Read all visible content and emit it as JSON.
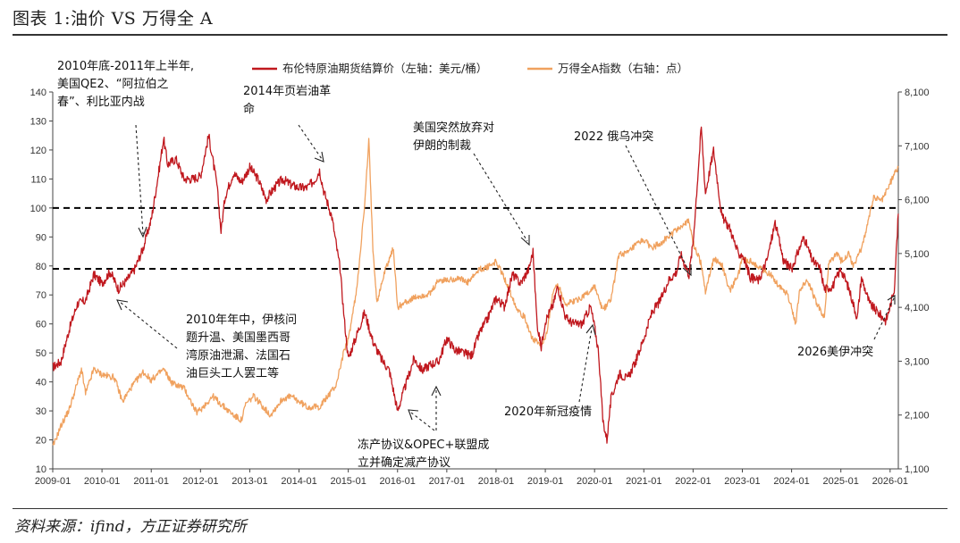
{
  "figure": {
    "title": "图表 1:油价 VS 万得全 A",
    "source": "资料来源：ifind，方正证券研究所"
  },
  "colors": {
    "brent": "#c0181e",
    "wind_a": "#f0a15e",
    "axis": "#444444",
    "ref_line": "#000000"
  },
  "chart_data": {
    "type": "line",
    "x_start": "2009-01",
    "x_end": "2026-03",
    "x_tick_labels": [
      "2009-01",
      "2010-01",
      "2011-01",
      "2012-01",
      "2013-01",
      "2014-01",
      "2015-01",
      "2016-01",
      "2017-01",
      "2018-01",
      "2019-01",
      "2020-01",
      "2021-01",
      "2022-01",
      "2023-01",
      "2024-01",
      "2025-01",
      "2026-01"
    ],
    "y_left": {
      "min": 10,
      "max": 140,
      "ticks": [
        10,
        20,
        30,
        40,
        50,
        60,
        70,
        80,
        90,
        100,
        110,
        120,
        130,
        140
      ]
    },
    "y_right": {
      "min": 1100,
      "max": 8100,
      "ticks": [
        "1,100",
        "2,100",
        "3,100",
        "4,100",
        "5,100",
        "6,100",
        "7,100",
        "8,100"
      ],
      "tick_values": [
        1100,
        2100,
        3100,
        4100,
        5100,
        6100,
        7100,
        8100
      ]
    },
    "reference_lines_left": [
      100,
      79
    ],
    "series": [
      {
        "name": "布伦特原油期货结算价（左轴：美元/桶）",
        "axis": "left",
        "points": [
          [
            "2009-01",
            45
          ],
          [
            "2009-03",
            47
          ],
          [
            "2009-05",
            58
          ],
          [
            "2009-07",
            67
          ],
          [
            "2009-09",
            68
          ],
          [
            "2009-11",
            77
          ],
          [
            "2010-01",
            74
          ],
          [
            "2010-03",
            78
          ],
          [
            "2010-05",
            72
          ],
          [
            "2010-07",
            75
          ],
          [
            "2010-09",
            79
          ],
          [
            "2010-11",
            86
          ],
          [
            "2011-01",
            96
          ],
          [
            "2011-03",
            114
          ],
          [
            "2011-04",
            124
          ],
          [
            "2011-05",
            115
          ],
          [
            "2011-07",
            117
          ],
          [
            "2011-09",
            110
          ],
          [
            "2011-11",
            110
          ],
          [
            "2012-01",
            111
          ],
          [
            "2012-03",
            125
          ],
          [
            "2012-05",
            108
          ],
          [
            "2012-06",
            92
          ],
          [
            "2012-07",
            104
          ],
          [
            "2012-09",
            112
          ],
          [
            "2012-11",
            109
          ],
          [
            "2013-01",
            114
          ],
          [
            "2013-03",
            110
          ],
          [
            "2013-05",
            103
          ],
          [
            "2013-07",
            107
          ],
          [
            "2013-09",
            110
          ],
          [
            "2013-11",
            108
          ],
          [
            "2014-01",
            107
          ],
          [
            "2014-03",
            107
          ],
          [
            "2014-05",
            110
          ],
          [
            "2014-06",
            113
          ],
          [
            "2014-07",
            106
          ],
          [
            "2014-09",
            97
          ],
          [
            "2014-11",
            79
          ],
          [
            "2014-12",
            62
          ],
          [
            "2015-01",
            48
          ],
          [
            "2015-03",
            56
          ],
          [
            "2015-05",
            64
          ],
          [
            "2015-07",
            54
          ],
          [
            "2015-09",
            48
          ],
          [
            "2015-11",
            44
          ],
          [
            "2015-12",
            37
          ],
          [
            "2016-01",
            30
          ],
          [
            "2016-03",
            39
          ],
          [
            "2016-05",
            48
          ],
          [
            "2016-07",
            44
          ],
          [
            "2016-09",
            46
          ],
          [
            "2016-11",
            47
          ],
          [
            "2017-01",
            55
          ],
          [
            "2017-03",
            51
          ],
          [
            "2017-05",
            50
          ],
          [
            "2017-07",
            49
          ],
          [
            "2017-09",
            57
          ],
          [
            "2017-11",
            62
          ],
          [
            "2018-01",
            69
          ],
          [
            "2018-03",
            66
          ],
          [
            "2018-05",
            77
          ],
          [
            "2018-07",
            74
          ],
          [
            "2018-09",
            79
          ],
          [
            "2018-10",
            85
          ],
          [
            "2018-11",
            60
          ],
          [
            "2018-12",
            52
          ],
          [
            "2019-01",
            61
          ],
          [
            "2019-03",
            67
          ],
          [
            "2019-04",
            73
          ],
          [
            "2019-06",
            62
          ],
          [
            "2019-08",
            60
          ],
          [
            "2019-10",
            60
          ],
          [
            "2019-12",
            66
          ],
          [
            "2020-01",
            59
          ],
          [
            "2020-02",
            50
          ],
          [
            "2020-03",
            27
          ],
          [
            "2020-04",
            20
          ],
          [
            "2020-05",
            34
          ],
          [
            "2020-07",
            43
          ],
          [
            "2020-09",
            41
          ],
          [
            "2020-11",
            47
          ],
          [
            "2021-01",
            55
          ],
          [
            "2021-03",
            64
          ],
          [
            "2021-05",
            68
          ],
          [
            "2021-07",
            75
          ],
          [
            "2021-09",
            78
          ],
          [
            "2021-10",
            84
          ],
          [
            "2021-12",
            77
          ],
          [
            "2022-01",
            88
          ],
          [
            "2022-03",
            128
          ],
          [
            "2022-04",
            105
          ],
          [
            "2022-06",
            120
          ],
          [
            "2022-08",
            97
          ],
          [
            "2022-10",
            93
          ],
          [
            "2022-12",
            84
          ],
          [
            "2023-01",
            84
          ],
          [
            "2023-03",
            76
          ],
          [
            "2023-05",
            75
          ],
          [
            "2023-07",
            82
          ],
          [
            "2023-09",
            95
          ],
          [
            "2023-11",
            82
          ],
          [
            "2024-01",
            79
          ],
          [
            "2024-04",
            90
          ],
          [
            "2024-06",
            82
          ],
          [
            "2024-08",
            79
          ],
          [
            "2024-09",
            72
          ],
          [
            "2024-11",
            73
          ],
          [
            "2025-01",
            79
          ],
          [
            "2025-03",
            72
          ],
          [
            "2025-05",
            62
          ],
          [
            "2025-06",
            76
          ],
          [
            "2025-08",
            67
          ],
          [
            "2025-10",
            64
          ],
          [
            "2025-12",
            61
          ],
          [
            "2026-01",
            66
          ],
          [
            "2026-02",
            72
          ],
          [
            "2026-03",
            98
          ]
        ]
      },
      {
        "name": "万得全A指数（右轴：点）",
        "axis": "right",
        "points": [
          [
            "2009-01",
            1500
          ],
          [
            "2009-03",
            1900
          ],
          [
            "2009-05",
            2200
          ],
          [
            "2009-08",
            2950
          ],
          [
            "2009-09",
            2500
          ],
          [
            "2009-11",
            2950
          ],
          [
            "2010-01",
            2850
          ],
          [
            "2010-04",
            2800
          ],
          [
            "2010-06",
            2350
          ],
          [
            "2010-08",
            2600
          ],
          [
            "2010-11",
            2900
          ],
          [
            "2011-01",
            2750
          ],
          [
            "2011-04",
            2950
          ],
          [
            "2011-06",
            2700
          ],
          [
            "2011-09",
            2600
          ],
          [
            "2011-12",
            2150
          ],
          [
            "2012-01",
            2200
          ],
          [
            "2012-04",
            2450
          ],
          [
            "2012-06",
            2300
          ],
          [
            "2012-09",
            2100
          ],
          [
            "2012-11",
            2000
          ],
          [
            "2012-12",
            2300
          ],
          [
            "2013-02",
            2450
          ],
          [
            "2013-06",
            2100
          ],
          [
            "2013-09",
            2400
          ],
          [
            "2013-11",
            2450
          ],
          [
            "2014-01",
            2350
          ],
          [
            "2014-03",
            2250
          ],
          [
            "2014-06",
            2250
          ],
          [
            "2014-08",
            2450
          ],
          [
            "2014-10",
            2650
          ],
          [
            "2014-12",
            3300
          ],
          [
            "2015-01",
            3500
          ],
          [
            "2015-03",
            4400
          ],
          [
            "2015-05",
            6000
          ],
          [
            "2015-06",
            7200
          ],
          [
            "2015-07",
            5200
          ],
          [
            "2015-08",
            4200
          ],
          [
            "2015-10",
            4800
          ],
          [
            "2015-12",
            5200
          ],
          [
            "2016-01",
            4100
          ],
          [
            "2016-03",
            4200
          ],
          [
            "2016-06",
            4300
          ],
          [
            "2016-09",
            4350
          ],
          [
            "2016-11",
            4600
          ],
          [
            "2017-01",
            4600
          ],
          [
            "2017-04",
            4650
          ],
          [
            "2017-06",
            4550
          ],
          [
            "2017-09",
            4800
          ],
          [
            "2017-11",
            4850
          ],
          [
            "2018-01",
            4950
          ],
          [
            "2018-03",
            4650
          ],
          [
            "2018-06",
            4100
          ],
          [
            "2018-08",
            3900
          ],
          [
            "2018-10",
            3500
          ],
          [
            "2018-12",
            3400
          ],
          [
            "2019-01",
            3500
          ],
          [
            "2019-03",
            4400
          ],
          [
            "2019-04",
            4550
          ],
          [
            "2019-06",
            4150
          ],
          [
            "2019-09",
            4250
          ],
          [
            "2019-12",
            4400
          ],
          [
            "2020-01",
            4500
          ],
          [
            "2020-02",
            4250
          ],
          [
            "2020-03",
            4050
          ],
          [
            "2020-05",
            4250
          ],
          [
            "2020-07",
            5100
          ],
          [
            "2020-09",
            5100
          ],
          [
            "2020-11",
            5250
          ],
          [
            "2021-01",
            5350
          ],
          [
            "2021-03",
            5200
          ],
          [
            "2021-05",
            5300
          ],
          [
            "2021-07",
            5400
          ],
          [
            "2021-09",
            5550
          ],
          [
            "2021-12",
            5700
          ],
          [
            "2022-01",
            5300
          ],
          [
            "2022-03",
            4900
          ],
          [
            "2022-04",
            4400
          ],
          [
            "2022-06",
            5000
          ],
          [
            "2022-08",
            4900
          ],
          [
            "2022-10",
            4400
          ],
          [
            "2022-12",
            4700
          ],
          [
            "2023-01",
            5000
          ],
          [
            "2023-03",
            4950
          ],
          [
            "2023-05",
            4850
          ],
          [
            "2023-08",
            4700
          ],
          [
            "2023-10",
            4500
          ],
          [
            "2023-12",
            4350
          ],
          [
            "2024-01",
            4100
          ],
          [
            "2024-02",
            3800
          ],
          [
            "2024-03",
            4450
          ],
          [
            "2024-05",
            4600
          ],
          [
            "2024-07",
            4200
          ],
          [
            "2024-09",
            3900
          ],
          [
            "2024-10",
            4900
          ],
          [
            "2024-12",
            5100
          ],
          [
            "2025-01",
            4950
          ],
          [
            "2025-03",
            5100
          ],
          [
            "2025-04",
            4850
          ],
          [
            "2025-06",
            5200
          ],
          [
            "2025-08",
            5800
          ],
          [
            "2025-09",
            6150
          ],
          [
            "2025-11",
            6100
          ],
          [
            "2026-01",
            6400
          ],
          [
            "2026-02",
            6600
          ],
          [
            "2026-03",
            6700
          ]
        ]
      }
    ],
    "annotations": [
      {
        "lines": [
          "2010年底-2011年上半年,",
          "美国QE2、“阿拉伯之",
          "春”、利比亚内战"
        ]
      },
      {
        "lines": [
          "2014年页岩油革",
          "命"
        ]
      },
      {
        "lines": [
          "美国突然放弃对",
          "伊朗的制裁"
        ]
      },
      {
        "lines": [
          "2022 俄乌冲突"
        ]
      },
      {
        "lines": [
          "2010年年中，伊核问",
          "题升温、美国墨西哥",
          "湾原油泄漏、法国石",
          "油巨头工人罢工等"
        ]
      },
      {
        "lines": [
          "冻产协议&OPEC+联盟成",
          "立并确定减产协议"
        ]
      },
      {
        "lines": [
          "2020年新冠疫情"
        ]
      },
      {
        "lines": [
          "2026美伊冲突"
        ]
      }
    ]
  }
}
